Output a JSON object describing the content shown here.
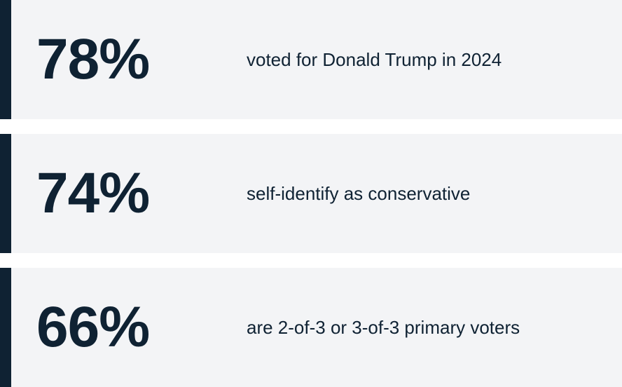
{
  "stats": [
    {
      "value": "78%",
      "label": "voted for Donald Trump in 2024"
    },
    {
      "value": "74%",
      "label": "self-identify as conservative"
    },
    {
      "value": "66%",
      "label": "are 2-of-3 or 3-of-3 primary voters"
    }
  ]
}
